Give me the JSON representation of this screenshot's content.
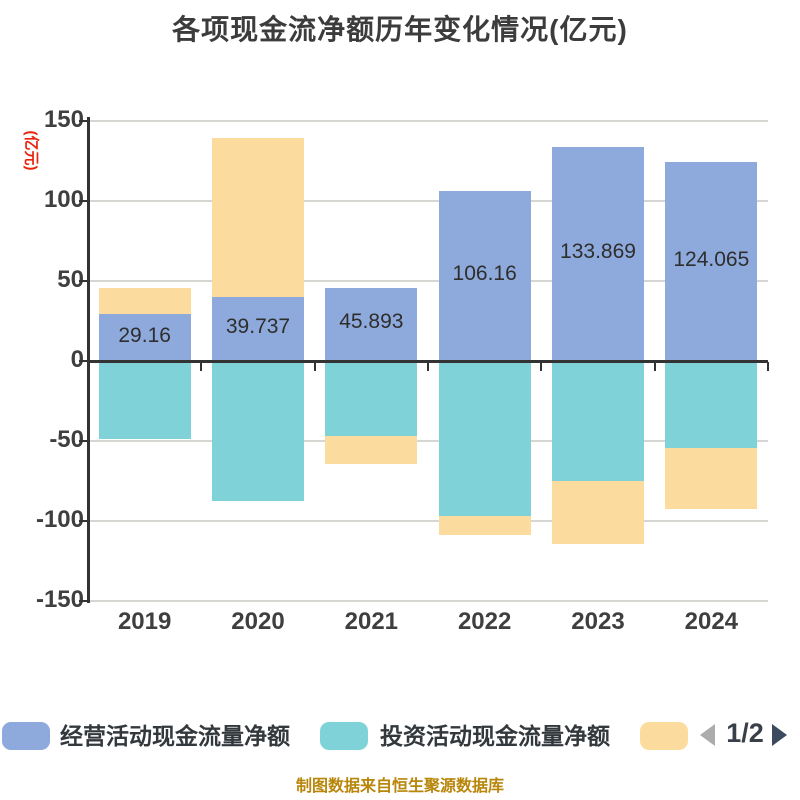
{
  "title": "各项现金流净额历年变化情况(亿元)",
  "axis": {
    "unit_label": "(亿元)",
    "unit_label_color": "#e8230e",
    "y_ticks": [
      "150",
      "100",
      "50",
      "0",
      "-50",
      "-100",
      "-150"
    ],
    "y_tick_values": [
      150,
      100,
      50,
      0,
      -50,
      -100,
      -150
    ]
  },
  "chart_data": {
    "type": "bar",
    "stacked": true,
    "categories": [
      "2019",
      "2020",
      "2021",
      "2022",
      "2023",
      "2024"
    ],
    "series": [
      {
        "key": "operating",
        "legend_label": "经营活动现金流量净额",
        "color": "#8ea9db",
        "values": [
          29.16,
          39.737,
          45.893,
          106.16,
          133.869,
          124.065
        ]
      },
      {
        "key": "investing",
        "legend_label": "投资活动现金流量净额",
        "color": "#7fd3d8",
        "values": [
          -49,
          -87.8,
          -46.8,
          -96.8,
          -74.9,
          -54.2
        ]
      },
      {
        "key": "series3",
        "legend_label": "",
        "color": "#fcdc9e",
        "values": [
          16.7,
          99.8,
          -17.8,
          -12.2,
          -39.6,
          -38.3
        ]
      }
    ],
    "value_labels": [
      "29.16",
      "39.737",
      "45.893",
      "106.16",
      "133.869",
      "124.065"
    ],
    "title": "各项现金流净额历年变化情况(亿元)",
    "xlabel": "",
    "ylabel": "(亿元)",
    "ylim": [
      -150,
      150
    ],
    "ytick_interval": 50,
    "grid": true,
    "legend_position": "bottom"
  },
  "legend": {
    "items": [
      {
        "label": "经营活动现金流量净额",
        "color": "#8ea9db"
      },
      {
        "label": "投资活动现金流量净额",
        "color": "#7fd3d8"
      },
      {
        "label": "",
        "color": "#fcdc9e"
      }
    ],
    "pagination": {
      "current": "1/2",
      "prev_icon": "left-triangle",
      "next_icon": "right-triangle",
      "prev_color": "#acacac",
      "next_color": "#3b4a5e"
    }
  },
  "caption": "制图数据来自恒生聚源数据库",
  "colors": {
    "background": "#ffffff",
    "gridline": "#d6d6d2",
    "axis": "#333333",
    "tick_label": "#3f3f3f",
    "value_label": "#2e2e2e",
    "title": "#3c3c3c",
    "caption": "#b8860b"
  }
}
